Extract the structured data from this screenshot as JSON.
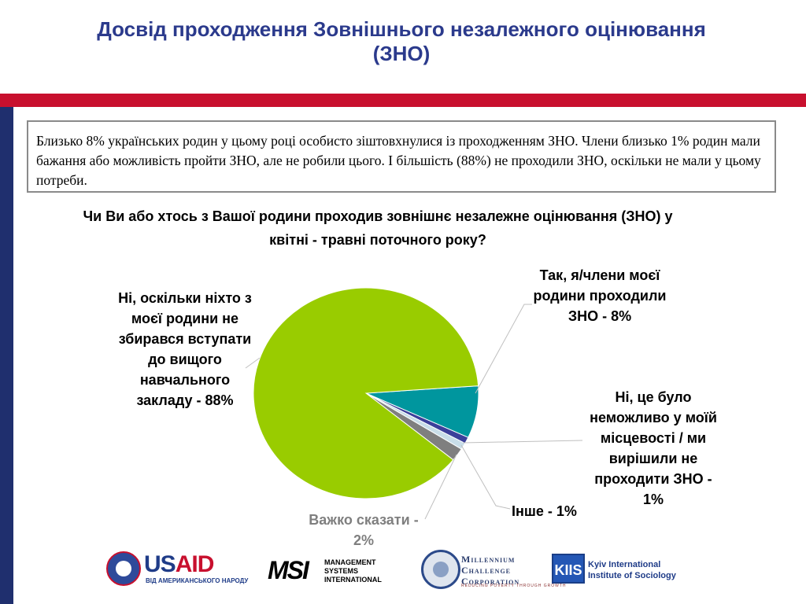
{
  "title": "Досвід проходження Зовнішнього незалежного оцінювання (ЗНО)",
  "summary_text": "Близько 8% українських родин у цьому році особисто зіштовхнулися із проходженням ЗНО. Члени близько 1% родин мали бажання або можливість пройти ЗНО, але не робили цього. І більшість (88%) не проходили ЗНО, оскільки не мали у цьому потреби.",
  "chart_data": {
    "type": "pie",
    "title": "Чи Ви або хтось з  Вашої родини  проходив  зовнішнє незалежне оцінювання  (ЗНО) у квітні - травні поточного року?",
    "slices": [
      {
        "label": "Так, я/члени моєї родини проходили ЗНО - 8%",
        "value": 8,
        "color": "#00969e"
      },
      {
        "label": "Ні, це було неможливо у моїй місцевості / ми вирішили не проходити ЗНО - 1%",
        "value": 1,
        "color": "#3b3f9a"
      },
      {
        "label": "Інше - 1%",
        "value": 1,
        "color": "#c8dde8"
      },
      {
        "label": "Важко сказати - 2%",
        "value": 2,
        "color": "#7f7f7f"
      },
      {
        "label": "Ні, оскільки ніхто з моєї родини не збирався вступати до вищого навчального закладу  - 88%",
        "value": 88,
        "color": "#99cc00"
      }
    ]
  },
  "labels": {
    "yes": "Так, я/члени моєї родини проходили ЗНО - 8%",
    "impossible": "Ні, це було неможливо у моїй місцевості / ми вирішили не проходити ЗНО - 1%",
    "other": "Інше - 1%",
    "hard": "Важко сказати - 2%",
    "no": "Ні, оскільки ніхто з моєї родини не збирався вступати до вищого навчального закладу  - 88%"
  },
  "logos": {
    "usaid_u": "US",
    "usaid_aid": "AID",
    "usaid_sub": "ВІД АМЕРИКАНСЬКОГО НАРОДУ",
    "msi_mark": "MSI",
    "msi_text": "MANAGEMENT SYSTEMS INTERNATIONAL",
    "mcc_text": "Millennium Challenge Corporation",
    "mcc_sub": "REDUCING POVERTY THROUGH GROWTH",
    "kiis_mark": "KIIS",
    "kiis_text": "Kyiv International Institute of Sociology"
  },
  "colors": {
    "title": "#2b3a8c",
    "accent_red": "#c8102e",
    "accent_blue": "#1f2f6e"
  }
}
